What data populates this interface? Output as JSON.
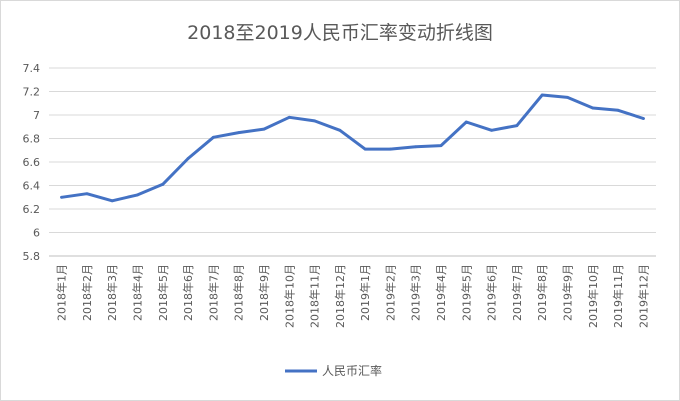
{
  "chart_data": {
    "type": "line",
    "title": "2018至2019人民币汇率变动折线图",
    "categories": [
      "2018年1月",
      "2018年2月",
      "2018年3月",
      "2018年4月",
      "2018年5月",
      "2018年6月",
      "2018年7月",
      "2018年8月",
      "2018年9月",
      "2018年10月",
      "2018年11月",
      "2018年12月",
      "2019年1月",
      "2019年2月",
      "2019年3月",
      "2019年4月",
      "2019年5月",
      "2019年6月",
      "2019年7月",
      "2019年8月",
      "2019年9月",
      "2019年10月",
      "2019年11月",
      "2019年12月"
    ],
    "series": [
      {
        "name": "人民币汇率",
        "color": "#4472c4",
        "values": [
          6.3,
          6.33,
          6.27,
          6.32,
          6.41,
          6.63,
          6.81,
          6.85,
          6.88,
          6.98,
          6.95,
          6.87,
          6.71,
          6.71,
          6.73,
          6.74,
          6.94,
          6.87,
          6.91,
          7.17,
          7.15,
          7.06,
          7.04,
          6.97
        ]
      }
    ],
    "ylim": [
      5.8,
      7.4
    ],
    "yticks": [
      "7.4",
      "7.2",
      "7",
      "6.8",
      "6.6",
      "6.4",
      "6.2",
      "6",
      "5.8"
    ],
    "grid": true,
    "legend": "bottom"
  }
}
